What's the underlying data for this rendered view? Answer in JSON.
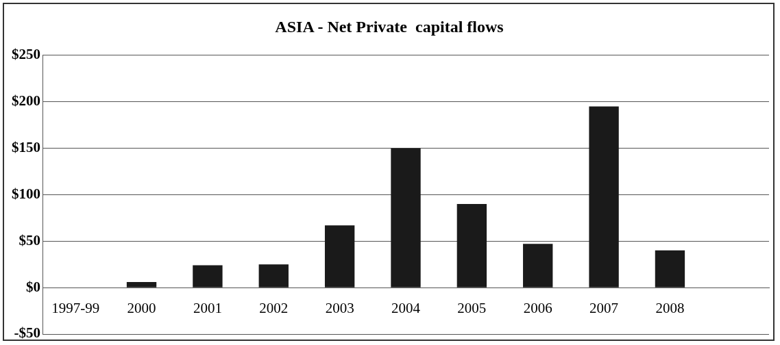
{
  "chart_data": {
    "type": "bar",
    "title": "ASIA - Net Private  capital flows",
    "categories": [
      "1997-99",
      "2000",
      "2001",
      "2002",
      "2003",
      "2004",
      "2005",
      "2006",
      "2007",
      "2008",
      null
    ],
    "values": [
      0,
      6,
      24,
      25,
      67,
      150,
      90,
      47,
      195,
      40,
      null
    ],
    "color": "#1a1a1a",
    "ylim": [
      -50,
      250
    ],
    "yticks": [
      {
        "value": -50,
        "label": "-$50"
      },
      {
        "value": 0,
        "label": "$0"
      },
      {
        "value": 50,
        "label": "$50"
      },
      {
        "value": 100,
        "label": "$100"
      },
      {
        "value": 150,
        "label": "$150"
      },
      {
        "value": 200,
        "label": "$200"
      },
      {
        "value": 250,
        "label": "$250"
      }
    ],
    "grid": "y",
    "legend": false
  }
}
